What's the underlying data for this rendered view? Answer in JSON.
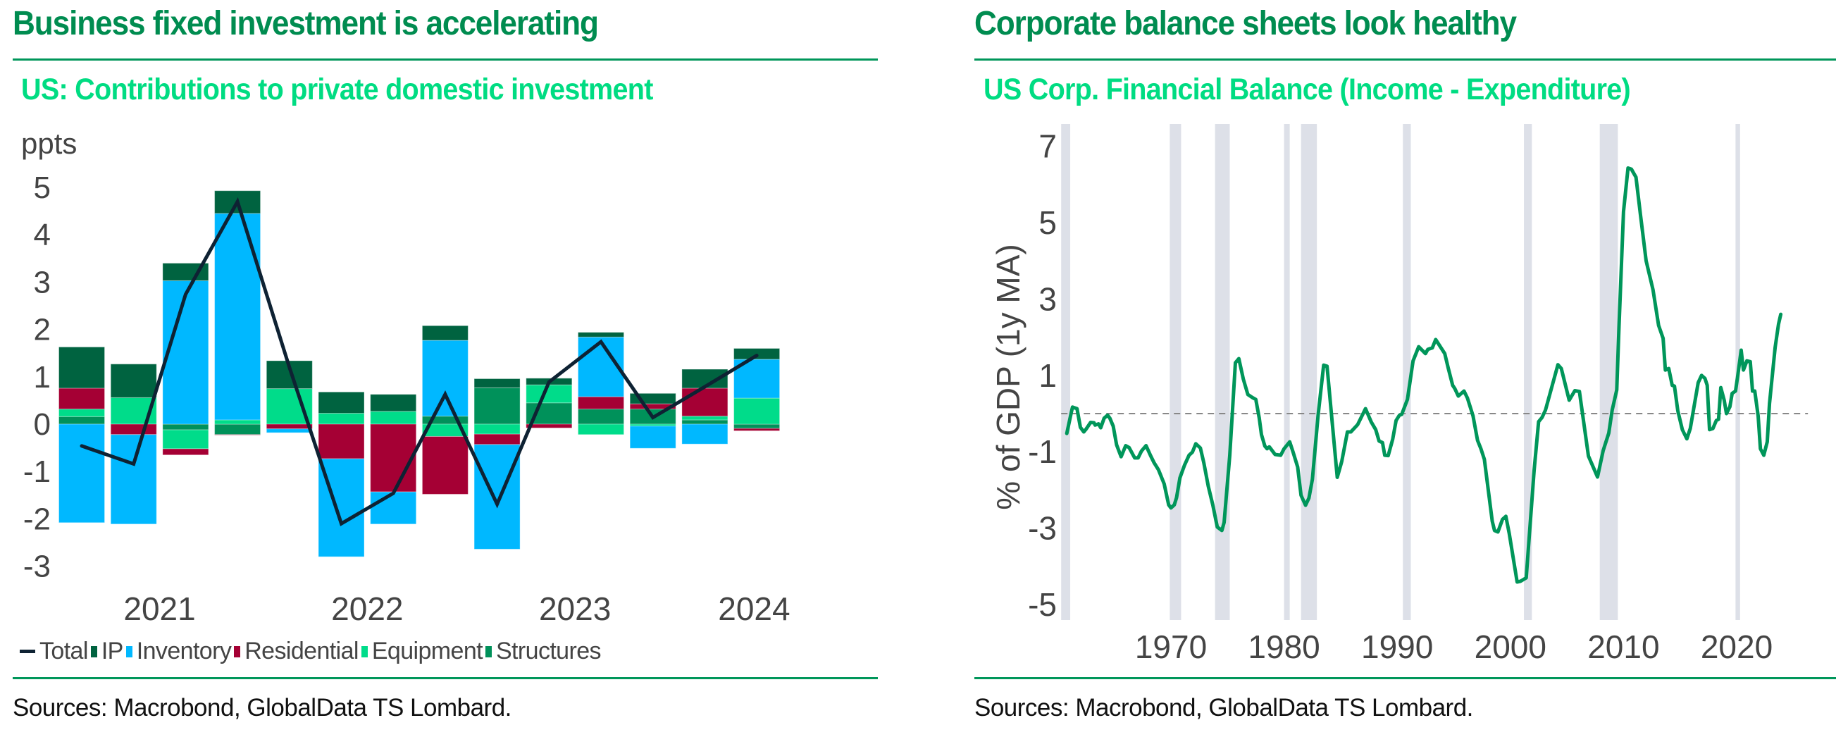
{
  "left_panel": {
    "heading": "Business fixed investment is accelerating",
    "subtitle": "US: Contributions to private domestic investment",
    "unit_label": "ppts",
    "sources": "Sources: Macrobond, GlobalData TS Lombard."
  },
  "right_panel": {
    "heading": "Corporate balance sheets look healthy",
    "subtitle": "US Corp. Financial Balance (Income - Expenditure)",
    "sources": "Sources: Macrobond, GlobalData TS Lombard."
  },
  "colors": {
    "heading": "#008C50",
    "subtitle": "#00DC82",
    "rule": "#00965A",
    "IP": "#006340",
    "Inventory": "#00B8FF",
    "Residential": "#A50034",
    "Equipment": "#00DC8A",
    "Structures": "#00915A",
    "Total": "#0E2233",
    "balance_line": "#00965A",
    "recession": "#DDE0E8",
    "zero_line": "#888888"
  },
  "chart_data": [
    {
      "type": "bar",
      "stacked": true,
      "title": "US: Contributions to private domestic investment",
      "ylabel": "ppts",
      "xlabel": "",
      "ylim": [
        -3.3,
        5.3
      ],
      "yticks": [
        -3,
        -2,
        -1,
        0,
        1,
        2,
        3,
        4,
        5
      ],
      "categories": [
        "2021Q1",
        "2021Q2",
        "2021Q3",
        "2021Q4",
        "2022Q1",
        "2022Q2",
        "2022Q3",
        "2022Q4",
        "2023Q1",
        "2023Q2",
        "2023Q3",
        "2023Q4",
        "2024Q1",
        "2024Q2"
      ],
      "xticks": [
        {
          "label": "2021",
          "at": 1.5
        },
        {
          "label": "2022",
          "at": 5.5
        },
        {
          "label": "2023",
          "at": 9.5
        },
        {
          "label": "2024",
          "at": 12.95
        }
      ],
      "legend": [
        "Total",
        "IP",
        "Inventory",
        "Residential",
        "Equipment",
        "Structures"
      ],
      "legend_position": "bottom",
      "grid": false,
      "series": [
        {
          "name": "IP",
          "kind": "bar",
          "values": [
            0.87,
            0.71,
            0.37,
            0.48,
            0.59,
            0.45,
            0.36,
            0.31,
            0.19,
            0.14,
            0.1,
            0.22,
            0.4,
            0.23
          ]
        },
        {
          "name": "Inventory",
          "kind": "bar",
          "values": [
            -2.08,
            -1.89,
            3.03,
            4.36,
            -0.08,
            -2.07,
            -0.68,
            1.6,
            -2.21,
            0.0,
            1.26,
            -0.47,
            -0.42,
            0.82
          ]
        },
        {
          "name": "Residential",
          "kind": "bar",
          "values": [
            0.44,
            -0.22,
            -0.13,
            -0.01,
            -0.1,
            -0.73,
            -1.43,
            -1.22,
            -0.22,
            -0.08,
            0.26,
            0.11,
            0.59,
            -0.05
          ]
        },
        {
          "name": "Equipment",
          "kind": "bar",
          "values": [
            0.16,
            0.56,
            -0.4,
            0.09,
            0.75,
            0.23,
            0.27,
            -0.26,
            -0.21,
            0.38,
            -0.22,
            -0.04,
            0.08,
            0.55
          ]
        },
        {
          "name": "Structures",
          "kind": "bar",
          "values": [
            0.16,
            0.0,
            -0.12,
            -0.22,
            0.0,
            0.0,
            0.0,
            0.17,
            0.77,
            0.45,
            0.32,
            0.32,
            0.09,
            -0.09
          ]
        },
        {
          "name": "Total",
          "kind": "line",
          "values": [
            -0.46,
            -0.84,
            2.74,
            4.7,
            1.2,
            -2.1,
            -1.46,
            0.63,
            -1.69,
            0.89,
            1.74,
            0.14,
            0.79,
            1.45
          ]
        }
      ]
    },
    {
      "type": "line",
      "title": "US Corp. Financial Balance (Income - Expenditure)",
      "ylabel": "% of GDP (1y MA)",
      "xlabel": "",
      "ylim": [
        -5.3,
        7.3
      ],
      "xlim": [
        1960.0,
        2026.5
      ],
      "yticks": [
        -5,
        -3,
        -1,
        1,
        3,
        5,
        7
      ],
      "xticks": [
        1970,
        1980,
        1990,
        2000,
        2010,
        2020
      ],
      "reference_line": 0,
      "grid": false,
      "recessions": [
        [
          1960.3,
          1961.1
        ],
        [
          1969.9,
          1970.9
        ],
        [
          1973.9,
          1975.2
        ],
        [
          1980.0,
          1980.5
        ],
        [
          1981.5,
          1982.9
        ],
        [
          1990.5,
          1991.2
        ],
        [
          2001.2,
          2001.9
        ],
        [
          2007.9,
          2009.5
        ],
        [
          2019.9,
          2020.3
        ]
      ],
      "series": [
        {
          "name": "US Corp. Financial Balance",
          "points": [
            [
              1960.8,
              -0.52
            ],
            [
              1961.2,
              0.04
            ],
            [
              1961.3,
              0.17
            ],
            [
              1961.7,
              0.13
            ],
            [
              1962.0,
              -0.36
            ],
            [
              1962.3,
              -0.48
            ],
            [
              1962.5,
              -0.41
            ],
            [
              1962.9,
              -0.23
            ],
            [
              1963.2,
              -0.24
            ],
            [
              1963.3,
              -0.3
            ],
            [
              1963.6,
              -0.27
            ],
            [
              1963.8,
              -0.37
            ],
            [
              1964.1,
              -0.12
            ],
            [
              1964.4,
              -0.04
            ],
            [
              1964.6,
              -0.12
            ],
            [
              1964.9,
              -0.33
            ],
            [
              1965.2,
              -0.82
            ],
            [
              1965.6,
              -1.13
            ],
            [
              1966.0,
              -0.84
            ],
            [
              1966.3,
              -0.89
            ],
            [
              1966.8,
              -1.16
            ],
            [
              1967.1,
              -1.16
            ],
            [
              1967.4,
              -0.98
            ],
            [
              1967.8,
              -0.84
            ],
            [
              1968.2,
              -1.1
            ],
            [
              1968.5,
              -1.28
            ],
            [
              1968.9,
              -1.47
            ],
            [
              1969.4,
              -1.84
            ],
            [
              1969.8,
              -2.39
            ],
            [
              1970.0,
              -2.47
            ],
            [
              1970.3,
              -2.39
            ],
            [
              1970.5,
              -2.2
            ],
            [
              1970.8,
              -1.68
            ],
            [
              1971.2,
              -1.35
            ],
            [
              1971.6,
              -1.09
            ],
            [
              1971.9,
              -1.01
            ],
            [
              1972.2,
              -0.79
            ],
            [
              1972.6,
              -0.9
            ],
            [
              1972.9,
              -1.28
            ],
            [
              1973.3,
              -1.9
            ],
            [
              1973.7,
              -2.39
            ],
            [
              1974.1,
              -2.97
            ],
            [
              1974.5,
              -3.06
            ],
            [
              1974.7,
              -2.85
            ],
            [
              1975.2,
              -1.1
            ],
            [
              1975.7,
              1.33
            ],
            [
              1976.0,
              1.44
            ],
            [
              1976.4,
              0.9
            ],
            [
              1976.8,
              0.5
            ],
            [
              1977.2,
              0.42
            ],
            [
              1977.5,
              0.37
            ],
            [
              1977.8,
              -0.11
            ],
            [
              1978.0,
              -0.55
            ],
            [
              1978.3,
              -0.85
            ],
            [
              1978.5,
              -0.92
            ],
            [
              1978.7,
              -0.87
            ],
            [
              1979.2,
              -1.07
            ],
            [
              1979.7,
              -1.09
            ],
            [
              1980.0,
              -0.92
            ],
            [
              1980.5,
              -0.74
            ],
            [
              1980.8,
              -1.01
            ],
            [
              1981.2,
              -1.4
            ],
            [
              1981.5,
              -2.14
            ],
            [
              1981.9,
              -2.4
            ],
            [
              1982.2,
              -2.21
            ],
            [
              1982.5,
              -1.72
            ],
            [
              1983.0,
              -0.06
            ],
            [
              1983.5,
              1.27
            ],
            [
              1983.8,
              1.24
            ],
            [
              1984.7,
              -1.67
            ],
            [
              1985.1,
              -1.25
            ],
            [
              1985.6,
              -0.48
            ],
            [
              1985.9,
              -0.48
            ],
            [
              1986.5,
              -0.29
            ],
            [
              1987.2,
              0.13
            ],
            [
              1987.7,
              -0.22
            ],
            [
              1988.1,
              -0.42
            ],
            [
              1988.4,
              -0.72
            ],
            [
              1988.7,
              -0.76
            ],
            [
              1988.9,
              -1.09
            ],
            [
              1989.2,
              -1.1
            ],
            [
              1989.6,
              -0.67
            ],
            [
              1989.9,
              -0.18
            ],
            [
              1990.2,
              -0.04
            ],
            [
              1990.4,
              -0.02
            ],
            [
              1990.9,
              0.37
            ],
            [
              1991.4,
              1.38
            ],
            [
              1991.9,
              1.75
            ],
            [
              1992.5,
              1.57
            ],
            [
              1992.7,
              1.68
            ],
            [
              1993.1,
              1.72
            ],
            [
              1993.4,
              1.94
            ],
            [
              1994.2,
              1.57
            ],
            [
              1994.5,
              1.2
            ],
            [
              1994.9,
              0.74
            ],
            [
              1995.1,
              0.65
            ],
            [
              1995.4,
              0.46
            ],
            [
              1995.9,
              0.59
            ],
            [
              1996.2,
              0.41
            ],
            [
              1996.7,
              -0.06
            ],
            [
              1997.1,
              -0.7
            ],
            [
              1997.4,
              -0.92
            ],
            [
              1997.7,
              -1.2
            ],
            [
              1998.4,
              -2.82
            ],
            [
              1998.6,
              -3.06
            ],
            [
              1998.9,
              -3.1
            ],
            [
              1999.3,
              -2.77
            ],
            [
              1999.6,
              -2.69
            ],
            [
              1999.9,
              -3.14
            ],
            [
              2000.6,
              -4.41
            ],
            [
              2000.9,
              -4.39
            ],
            [
              2001.4,
              -4.3
            ],
            [
              2002.1,
              -1.49
            ],
            [
              2002.5,
              -0.21
            ],
            [
              2002.8,
              -0.1
            ],
            [
              2003.1,
              0.09
            ],
            [
              2004.2,
              1.28
            ],
            [
              2004.5,
              1.18
            ],
            [
              2005.2,
              0.35
            ],
            [
              2005.7,
              0.6
            ],
            [
              2006.1,
              0.58
            ],
            [
              2006.9,
              -1.11
            ],
            [
              2007.7,
              -1.66
            ],
            [
              2008.2,
              -0.97
            ],
            [
              2008.7,
              -0.51
            ],
            [
              2009.0,
              0.09
            ],
            [
              2009.4,
              0.62
            ],
            [
              2009.6,
              2.28
            ],
            [
              2010.0,
              5.29
            ],
            [
              2010.4,
              6.43
            ],
            [
              2010.7,
              6.4
            ],
            [
              2011.1,
              6.19
            ],
            [
              2011.5,
              5.2
            ],
            [
              2012.0,
              4.0
            ],
            [
              2012.6,
              3.25
            ],
            [
              2013.1,
              2.31
            ],
            [
              2013.5,
              1.97
            ],
            [
              2013.7,
              1.14
            ],
            [
              2014.0,
              1.18
            ],
            [
              2014.3,
              0.74
            ],
            [
              2014.5,
              0.72
            ],
            [
              2014.8,
              0.07
            ],
            [
              2015.2,
              -0.42
            ],
            [
              2015.6,
              -0.66
            ],
            [
              2015.9,
              -0.39
            ],
            [
              2016.2,
              0.13
            ],
            [
              2016.6,
              0.81
            ],
            [
              2016.9,
              1.0
            ],
            [
              2017.2,
              0.92
            ],
            [
              2017.4,
              0.74
            ],
            [
              2017.6,
              -0.42
            ],
            [
              2017.9,
              -0.39
            ],
            [
              2018.2,
              -0.18
            ],
            [
              2018.4,
              -0.15
            ],
            [
              2018.6,
              0.68
            ],
            [
              2018.9,
              0.35
            ],
            [
              2019.1,
              0.0
            ],
            [
              2019.4,
              0.18
            ],
            [
              2019.6,
              0.53
            ],
            [
              2019.9,
              0.59
            ],
            [
              2020.1,
              1.0
            ],
            [
              2020.4,
              1.66
            ],
            [
              2020.6,
              1.14
            ],
            [
              2020.9,
              1.38
            ],
            [
              2021.2,
              1.36
            ],
            [
              2021.4,
              0.59
            ],
            [
              2021.6,
              0.59
            ],
            [
              2021.9,
              -0.06
            ],
            [
              2022.1,
              -0.92
            ],
            [
              2022.4,
              -1.09
            ],
            [
              2022.7,
              -0.74
            ],
            [
              2022.9,
              0.26
            ],
            [
              2023.4,
              1.73
            ],
            [
              2023.7,
              2.34
            ],
            [
              2023.9,
              2.6
            ]
          ]
        }
      ]
    }
  ]
}
